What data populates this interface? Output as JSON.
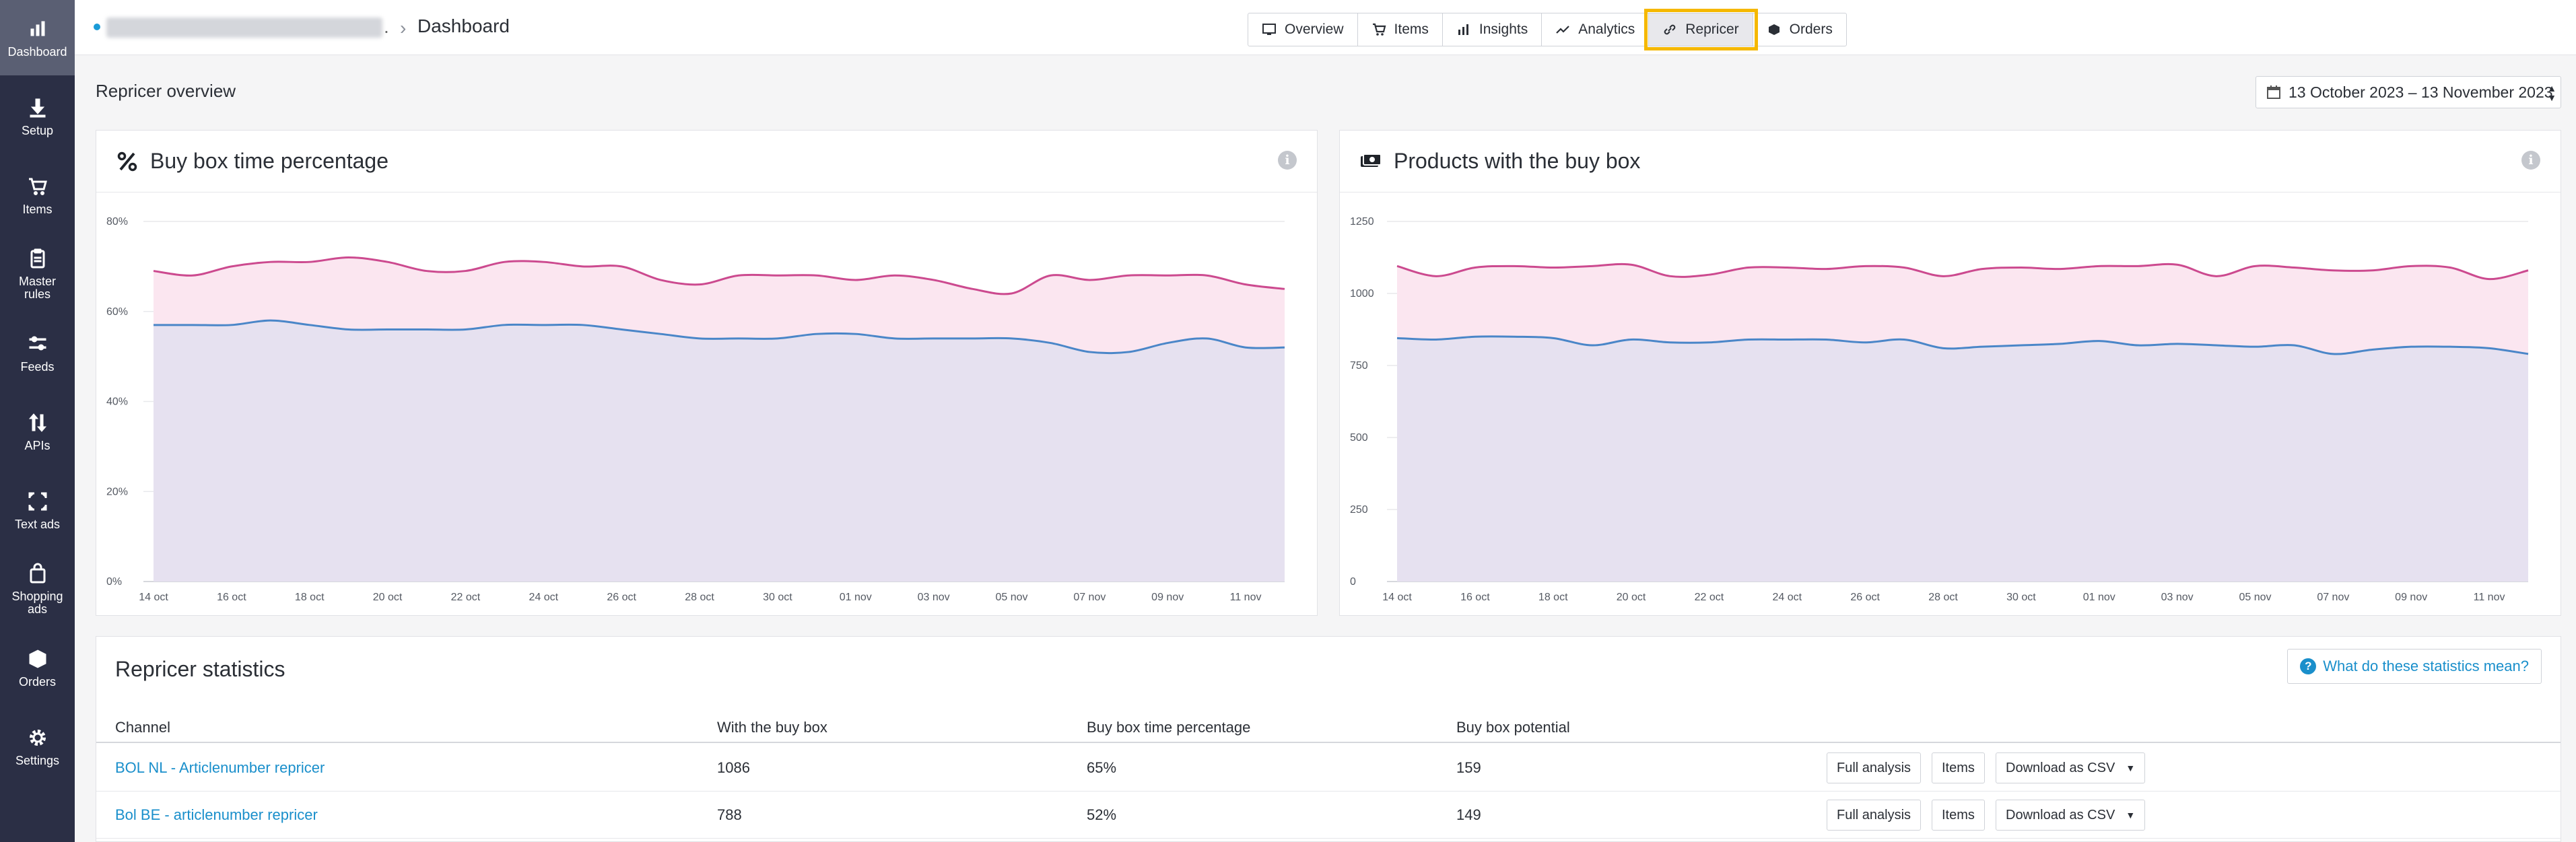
{
  "sidebar": {
    "items": [
      {
        "label": "Dashboard",
        "icon": "bar-chart-icon"
      },
      {
        "label": "Setup",
        "icon": "download-icon"
      },
      {
        "label": "Items",
        "icon": "cart-icon"
      },
      {
        "label": "Master rules",
        "icon": "clipboard-icon"
      },
      {
        "label": "Feeds",
        "icon": "sliders-icon"
      },
      {
        "label": "APIs",
        "icon": "arrows-updown-icon"
      },
      {
        "label": "Text ads",
        "icon": "expand-icon"
      },
      {
        "label": "Shopping ads",
        "icon": "shopping-bag-icon"
      },
      {
        "label": "Orders",
        "icon": "box-icon"
      },
      {
        "label": "Settings",
        "icon": "gear-icon"
      }
    ]
  },
  "breadcrumb": {
    "separator": ".",
    "current": "Dashboard"
  },
  "tabs": [
    {
      "label": "Overview",
      "icon": "screen-icon"
    },
    {
      "label": "Items",
      "icon": "cart-icon"
    },
    {
      "label": "Insights",
      "icon": "bar-chart-icon"
    },
    {
      "label": "Analytics",
      "icon": "trend-icon"
    },
    {
      "label": "Repricer",
      "icon": "link-icon",
      "active": true
    },
    {
      "label": "Orders",
      "icon": "box-icon"
    }
  ],
  "overview": {
    "title": "Repricer overview",
    "date_range": "13 October 2023 – 13 November 2023"
  },
  "chart_data": [
    {
      "type": "area",
      "title": "Buy box time percentage",
      "x": [
        "14 oct",
        "15 oct",
        "16 oct",
        "17 oct",
        "18 oct",
        "19 oct",
        "20 oct",
        "21 oct",
        "22 oct",
        "23 oct",
        "24 oct",
        "25 oct",
        "26 oct",
        "27 oct",
        "28 oct",
        "29 oct",
        "30 oct",
        "31 oct",
        "01 nov",
        "02 nov",
        "03 nov",
        "04 nov",
        "05 nov",
        "06 nov",
        "07 nov",
        "08 nov",
        "09 nov",
        "10 nov",
        "11 nov",
        "12 nov"
      ],
      "tick_labels": [
        "14 oct",
        "16 oct",
        "18 oct",
        "20 oct",
        "22 oct",
        "24 oct",
        "26 oct",
        "28 oct",
        "30 oct",
        "01 nov",
        "03 nov",
        "05 nov",
        "07 nov",
        "09 nov",
        "11 nov"
      ],
      "y_tick_labels": [
        "0%",
        "20%",
        "40%",
        "60%",
        "80%"
      ],
      "ylim": [
        0,
        80
      ],
      "series": [
        {
          "values": [
            69,
            68,
            70,
            71,
            71,
            72,
            71,
            69,
            69,
            71,
            71,
            70,
            70,
            67,
            66,
            68,
            68,
            68,
            67,
            68,
            67,
            65,
            64,
            68,
            67,
            68,
            68,
            68,
            66,
            65
          ],
          "color": "#cc4a8f",
          "fill": "#fbe6f0"
        },
        {
          "values": [
            57,
            57,
            57,
            58,
            57,
            56,
            56,
            56,
            56,
            57,
            57,
            57,
            56,
            55,
            54,
            54,
            54,
            55,
            55,
            54,
            54,
            54,
            54,
            53,
            51,
            51,
            53,
            54,
            52,
            52
          ],
          "color": "#4a86c8",
          "fill": "#e6e1f0"
        }
      ]
    },
    {
      "type": "area",
      "title": "Products with the buy box",
      "x": [
        "14 oct",
        "15 oct",
        "16 oct",
        "17 oct",
        "18 oct",
        "19 oct",
        "20 oct",
        "21 oct",
        "22 oct",
        "23 oct",
        "24 oct",
        "25 oct",
        "26 oct",
        "27 oct",
        "28 oct",
        "29 oct",
        "30 oct",
        "31 oct",
        "01 nov",
        "02 nov",
        "03 nov",
        "04 nov",
        "05 nov",
        "06 nov",
        "07 nov",
        "08 nov",
        "09 nov",
        "10 nov",
        "11 nov",
        "12 nov"
      ],
      "tick_labels": [
        "14 oct",
        "16 oct",
        "18 oct",
        "20 oct",
        "22 oct",
        "24 oct",
        "26 oct",
        "28 oct",
        "30 oct",
        "01 nov",
        "03 nov",
        "05 nov",
        "07 nov",
        "09 nov",
        "11 nov"
      ],
      "y_tick_labels": [
        "0",
        "250",
        "500",
        "750",
        "1000",
        "1250"
      ],
      "ylim": [
        0,
        1250
      ],
      "series": [
        {
          "values": [
            1095,
            1060,
            1090,
            1095,
            1090,
            1095,
            1100,
            1060,
            1065,
            1090,
            1090,
            1085,
            1095,
            1090,
            1060,
            1085,
            1090,
            1085,
            1095,
            1095,
            1100,
            1060,
            1095,
            1090,
            1080,
            1080,
            1095,
            1090,
            1050,
            1080
          ],
          "color": "#cc4a8f",
          "fill": "#fbe6f0"
        },
        {
          "values": [
            845,
            840,
            850,
            850,
            845,
            820,
            840,
            830,
            830,
            840,
            840,
            840,
            830,
            840,
            810,
            815,
            820,
            825,
            835,
            820,
            825,
            820,
            815,
            820,
            790,
            805,
            815,
            815,
            810,
            790
          ],
          "color": "#4a86c8",
          "fill": "#e6e1f0"
        }
      ]
    }
  ],
  "statistics": {
    "title": "Repricer statistics",
    "help_label": "What do these statistics mean?",
    "columns": [
      "Channel",
      "With the buy box",
      "Buy box time percentage",
      "Buy box potential"
    ],
    "rows": [
      {
        "channel": "BOL NL - Articlenumber repricer",
        "with_buy_box": "1086",
        "time_pct": "65%",
        "potential": "159"
      },
      {
        "channel": "Bol BE - articlenumber repricer",
        "with_buy_box": "788",
        "time_pct": "52%",
        "potential": "149"
      }
    ],
    "row_actions": {
      "analysis": "Full analysis",
      "items": "Items",
      "download": "Download as CSV"
    }
  }
}
